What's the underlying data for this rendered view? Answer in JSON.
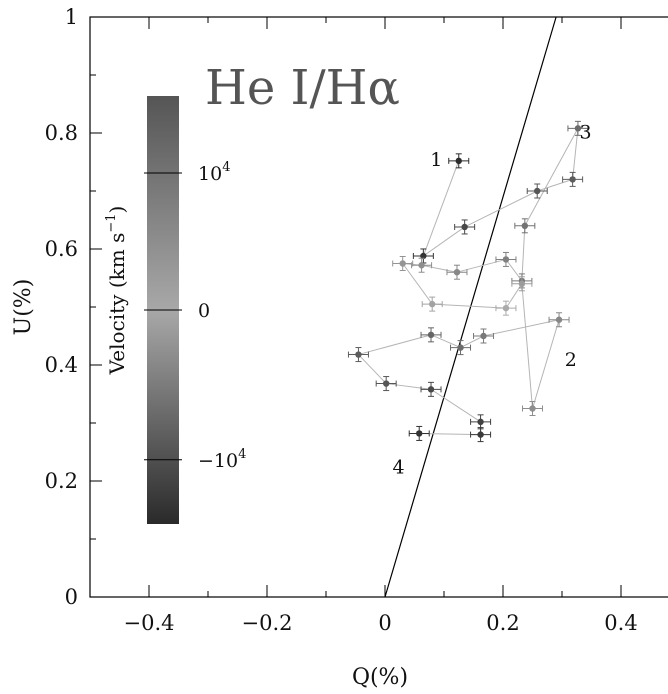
{
  "chart_data": {
    "type": "scatter",
    "title": "He I/Hα",
    "xlabel": "Q(%)",
    "ylabel": "U(%)",
    "xlim": [
      -0.5,
      0.5
    ],
    "ylim": [
      0,
      1
    ],
    "xticks": [
      -0.4,
      -0.2,
      0,
      0.2,
      0.4
    ],
    "xtick_labels": [
      "−0.4",
      "−0.2",
      "0",
      "0.2",
      "0.4"
    ],
    "yticks": [
      0,
      0.2,
      0.4,
      0.6,
      0.8,
      1
    ],
    "ytick_labels": [
      "0",
      "0.2",
      "0.4",
      "0.6",
      "0.8",
      "1"
    ],
    "grid": false,
    "colorbar": {
      "title": "Velocity (km s",
      "title_sup": "−1",
      "title_end": ")",
      "ticks": [
        {
          "fraction": 0.82,
          "label": "10",
          "sup": "4"
        },
        {
          "fraction": 0.5,
          "label": "0",
          "sup": ""
        },
        {
          "fraction": 0.15,
          "label": "−10",
          "sup": "4"
        }
      ],
      "colors": [
        "#2a2a2a",
        "#a8a8a8",
        "#555555"
      ]
    },
    "line": {
      "x": [
        0.0,
        0.29
      ],
      "y": [
        0.0,
        1.0
      ]
    },
    "series": [
      {
        "points": [
          {
            "q": 0.125,
            "u": 0.752,
            "c": 0.9
          },
          {
            "q": 0.065,
            "u": 0.588,
            "c": 0.85
          },
          {
            "q": 0.135,
            "u": 0.638,
            "c": 0.7
          },
          {
            "q": 0.258,
            "u": 0.7,
            "c": 0.6
          },
          {
            "q": 0.318,
            "u": 0.72,
            "c": 0.55
          },
          {
            "q": 0.327,
            "u": 0.808,
            "c": 0.45
          },
          {
            "q": 0.237,
            "u": 0.64,
            "c": 0.4
          },
          {
            "q": 0.232,
            "u": 0.545,
            "c": 0.35
          },
          {
            "q": 0.205,
            "u": 0.582,
            "c": 0.3
          },
          {
            "q": 0.122,
            "u": 0.56,
            "c": 0.25
          },
          {
            "q": 0.062,
            "u": 0.572,
            "c": 0.2
          },
          {
            "q": 0.03,
            "u": 0.575,
            "c": 0.15
          },
          {
            "q": 0.08,
            "u": 0.505,
            "c": 0.05
          },
          {
            "q": 0.205,
            "u": 0.498,
            "c": 0.0
          },
          {
            "q": 0.232,
            "u": 0.54,
            "c": -0.1
          },
          {
            "q": 0.25,
            "u": 0.325,
            "c": -0.2
          },
          {
            "q": 0.295,
            "u": 0.478,
            "c": -0.25
          },
          {
            "q": 0.167,
            "u": 0.45,
            "c": -0.35
          },
          {
            "q": 0.128,
            "u": 0.43,
            "c": -0.45
          },
          {
            "q": 0.078,
            "u": 0.452,
            "c": -0.5
          },
          {
            "q": -0.045,
            "u": 0.418,
            "c": -0.55
          },
          {
            "q": 0.002,
            "u": 0.368,
            "c": -0.6
          },
          {
            "q": 0.078,
            "u": 0.358,
            "c": -0.7
          },
          {
            "q": 0.162,
            "u": 0.302,
            "c": -0.75
          },
          {
            "q": 0.162,
            "u": 0.28,
            "c": -0.8
          },
          {
            "q": 0.058,
            "u": 0.282,
            "c": -0.85
          }
        ]
      }
    ],
    "annotations": [
      {
        "text": "1",
        "q": 0.087,
        "u": 0.755
      },
      {
        "text": "2",
        "q": 0.315,
        "u": 0.41
      },
      {
        "text": "3",
        "q": 0.34,
        "u": 0.803
      },
      {
        "text": "4",
        "q": 0.023,
        "u": 0.225
      }
    ]
  }
}
